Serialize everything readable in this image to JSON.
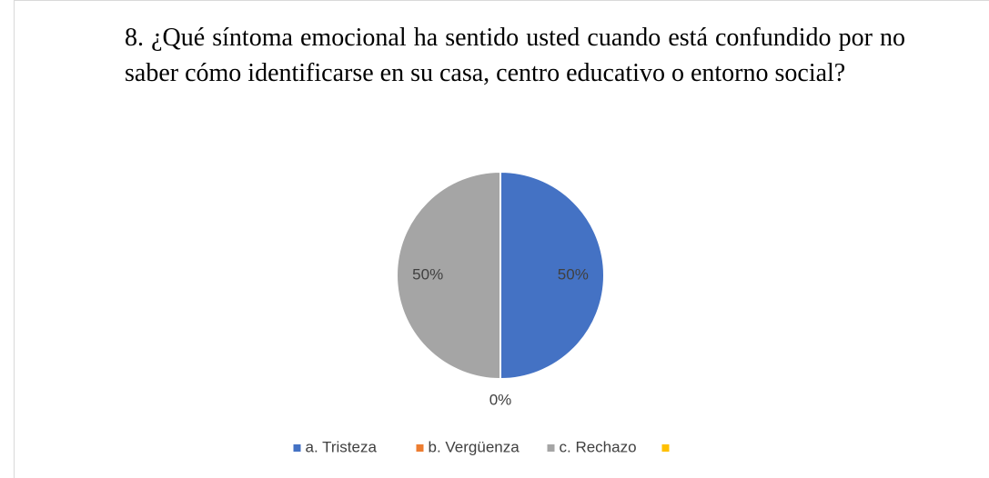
{
  "chart_data": {
    "type": "pie",
    "title": "8. ¿Qué síntoma emocional ha sentido usted cuando está confundido por no saber cómo identificarse en su casa, centro educativo o entorno social?",
    "categories": [
      "a. Tristeza",
      "b. Vergüenza",
      "c. Rechazo",
      null
    ],
    "values": [
      50,
      0,
      50,
      null
    ],
    "value_labels": [
      "50%",
      "0%",
      "50%",
      null
    ],
    "colors": [
      "#4472c4",
      "#ed7d31",
      "#a5a5a5",
      "#ffc000"
    ],
    "legend": "bottom"
  }
}
